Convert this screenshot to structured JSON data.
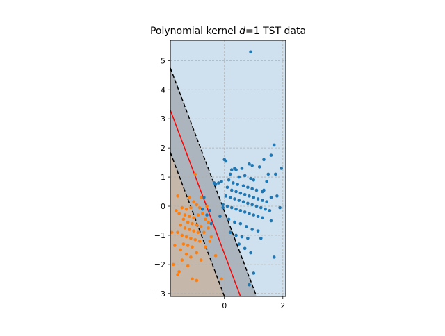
{
  "chart_data": {
    "type": "scatter",
    "title_parts": [
      "Polynomial kernel ",
      "d",
      "=1 TST data"
    ],
    "xlim": [
      -1.85,
      2.1
    ],
    "ylim": [
      -3.1,
      5.7
    ],
    "xticks": [
      0,
      2
    ],
    "yticks": [
      -3,
      -2,
      -1,
      0,
      1,
      2,
      3,
      4,
      5
    ],
    "grid": true,
    "region_colors": {
      "class_a": "#cfe1ee",
      "class_b": "#fde3cc",
      "margin": "#808080"
    },
    "decision_boundary": {
      "color": "#ff0000",
      "points": [
        [
          -1.85,
          3.3
        ],
        [
          0.55,
          -3.1
        ]
      ]
    },
    "margin_lines": {
      "color": "#000000",
      "upper": [
        [
          -1.85,
          4.75
        ],
        [
          1.1,
          -3.1
        ]
      ],
      "lower": [
        [
          -1.85,
          1.85
        ],
        [
          0.0,
          -3.1
        ]
      ]
    },
    "series": [
      {
        "color": "#1f77b4",
        "points": [
          [
            0.9,
            5.3
          ],
          [
            1.7,
            2.1
          ],
          [
            1.6,
            1.75
          ],
          [
            1.35,
            1.6
          ],
          [
            0.95,
            1.4
          ],
          [
            0.85,
            1.45
          ],
          [
            1.2,
            1.35
          ],
          [
            1.5,
            1.1
          ],
          [
            1.95,
            1.3
          ],
          [
            1.45,
            0.85
          ],
          [
            0.0,
            1.6
          ],
          [
            0.05,
            1.55
          ],
          [
            0.35,
            1.3
          ],
          [
            0.4,
            1.25
          ],
          [
            0.25,
            1.25
          ],
          [
            0.6,
            1.3
          ],
          [
            0.7,
            1.05
          ],
          [
            0.2,
            1.1
          ],
          [
            0.5,
            1.0
          ],
          [
            0.9,
            0.95
          ],
          [
            1.0,
            0.9
          ],
          [
            -0.1,
            0.85
          ],
          [
            -0.2,
            0.8
          ],
          [
            -0.3,
            0.75
          ],
          [
            0.15,
            0.9
          ],
          [
            0.3,
            0.8
          ],
          [
            0.45,
            0.75
          ],
          [
            0.65,
            0.7
          ],
          [
            0.8,
            0.65
          ],
          [
            0.95,
            0.6
          ],
          [
            1.1,
            0.55
          ],
          [
            1.3,
            0.5
          ],
          [
            1.75,
            1.1
          ],
          [
            1.8,
            0.35
          ],
          [
            0.1,
            0.65
          ],
          [
            0.25,
            0.55
          ],
          [
            0.4,
            0.5
          ],
          [
            0.55,
            0.45
          ],
          [
            0.7,
            0.4
          ],
          [
            0.85,
            0.35
          ],
          [
            1.0,
            0.3
          ],
          [
            1.15,
            0.25
          ],
          [
            1.3,
            0.2
          ],
          [
            1.45,
            0.15
          ],
          [
            1.6,
            0.3
          ],
          [
            1.9,
            -0.05
          ],
          [
            0.05,
            0.35
          ],
          [
            0.2,
            0.3
          ],
          [
            0.35,
            0.25
          ],
          [
            0.5,
            0.2
          ],
          [
            0.65,
            0.15
          ],
          [
            0.8,
            0.1
          ],
          [
            0.95,
            0.05
          ],
          [
            1.1,
            0.0
          ],
          [
            1.25,
            -0.05
          ],
          [
            1.4,
            -0.1
          ],
          [
            1.55,
            -0.15
          ],
          [
            -0.05,
            0.05
          ],
          [
            0.1,
            0.0
          ],
          [
            0.25,
            -0.05
          ],
          [
            0.4,
            -0.1
          ],
          [
            0.55,
            -0.15
          ],
          [
            0.7,
            -0.2
          ],
          [
            0.85,
            -0.25
          ],
          [
            1.0,
            -0.3
          ],
          [
            1.15,
            -0.35
          ],
          [
            1.3,
            -0.4
          ],
          [
            1.6,
            -0.5
          ],
          [
            0.15,
            -0.45
          ],
          [
            0.35,
            -0.55
          ],
          [
            0.55,
            -0.6
          ],
          [
            0.75,
            -0.7
          ],
          [
            0.95,
            -0.8
          ],
          [
            1.15,
            -0.85
          ],
          [
            0.2,
            -0.9
          ],
          [
            0.4,
            -1.0
          ],
          [
            0.6,
            -1.05
          ],
          [
            0.8,
            -1.1
          ],
          [
            1.25,
            -1.1
          ],
          [
            0.5,
            -1.3
          ],
          [
            0.7,
            -1.45
          ],
          [
            0.9,
            -1.6
          ],
          [
            1.0,
            -2.3
          ],
          [
            0.85,
            -2.7
          ],
          [
            1.7,
            -1.75
          ],
          [
            -0.6,
            -0.3
          ],
          [
            -0.45,
            -0.6
          ],
          [
            -0.5,
            -0.15
          ],
          [
            -0.05,
            -0.05
          ],
          [
            -0.15,
            -0.35
          ],
          [
            -0.35,
            0.8
          ],
          [
            -0.7,
            0.3
          ],
          [
            -0.75,
            -0.1
          ],
          [
            1.35,
            0.55
          ]
        ]
      },
      {
        "color": "#ff7f0e",
        "points": [
          [
            -1.6,
            0.35
          ],
          [
            -1.2,
            0.3
          ],
          [
            -1.05,
            0.15
          ],
          [
            -1.0,
            1.1
          ],
          [
            -0.8,
            0.3
          ],
          [
            -0.95,
            0.05
          ],
          [
            -0.85,
            -0.05
          ],
          [
            -0.6,
            0.0
          ],
          [
            -1.15,
            -0.05
          ],
          [
            -1.3,
            -0.1
          ],
          [
            -1.45,
            -0.05
          ],
          [
            -1.55,
            -0.25
          ],
          [
            -1.35,
            -0.3
          ],
          [
            -1.2,
            -0.35
          ],
          [
            -1.05,
            -0.4
          ],
          [
            -0.9,
            -0.3
          ],
          [
            -0.75,
            -0.25
          ],
          [
            -0.65,
            -0.45
          ],
          [
            -1.4,
            -0.45
          ],
          [
            -1.25,
            -0.55
          ],
          [
            -1.1,
            -0.6
          ],
          [
            -0.95,
            -0.65
          ],
          [
            -0.8,
            -0.7
          ],
          [
            -0.55,
            -0.75
          ],
          [
            -1.5,
            -0.65
          ],
          [
            -1.35,
            -0.75
          ],
          [
            -1.2,
            -0.8
          ],
          [
            -1.05,
            -0.85
          ],
          [
            -0.9,
            -0.9
          ],
          [
            -0.7,
            -0.9
          ],
          [
            -1.6,
            -0.9
          ],
          [
            -1.45,
            -1.0
          ],
          [
            -1.3,
            -1.05
          ],
          [
            -1.15,
            -1.1
          ],
          [
            -1.0,
            -1.15
          ],
          [
            -0.85,
            -1.2
          ],
          [
            -0.5,
            -1.2
          ],
          [
            -1.4,
            -1.3
          ],
          [
            -1.25,
            -1.35
          ],
          [
            -1.1,
            -1.4
          ],
          [
            -1.5,
            -1.5
          ],
          [
            -1.3,
            -1.65
          ],
          [
            -1.15,
            -1.75
          ],
          [
            -0.95,
            -1.6
          ],
          [
            -0.8,
            -1.85
          ],
          [
            -0.65,
            -1.4
          ],
          [
            -1.8,
            -0.9
          ],
          [
            -1.7,
            -1.35
          ],
          [
            -1.45,
            -1.85
          ],
          [
            -1.25,
            -2.05
          ],
          [
            -1.55,
            -2.25
          ],
          [
            -1.75,
            -2.0
          ],
          [
            -1.6,
            -2.35
          ],
          [
            -1.1,
            -2.5
          ],
          [
            -0.95,
            -2.55
          ],
          [
            -0.1,
            -2.5
          ],
          [
            -0.3,
            -1.7
          ],
          [
            -0.45,
            -1.05
          ],
          [
            -0.55,
            -0.55
          ],
          [
            -1.65,
            -0.15
          ]
        ]
      }
    ]
  }
}
